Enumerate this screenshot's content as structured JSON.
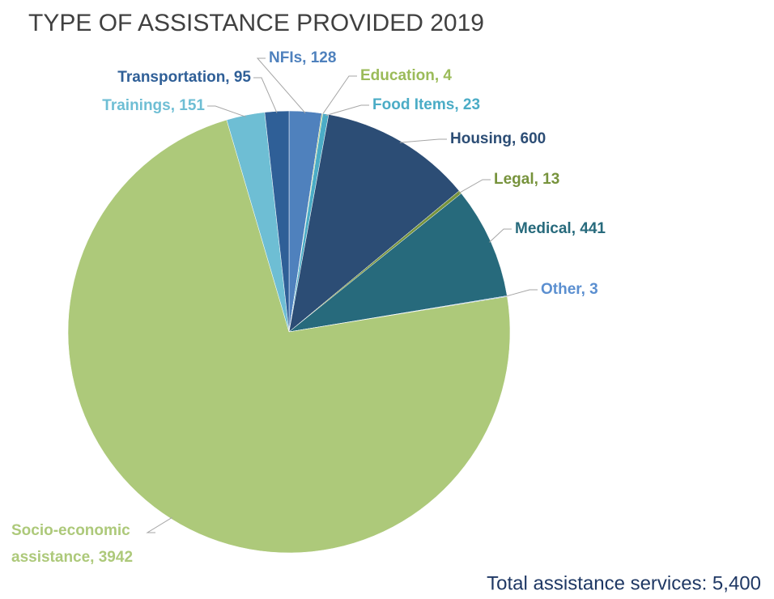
{
  "chart_data": {
    "type": "pie",
    "title": "TYPE OF ASSISTANCE PROVIDED 2019",
    "values": [
      128,
      4,
      23,
      600,
      13,
      441,
      3,
      3942,
      151,
      95
    ],
    "value_labels": [
      "NFIs, 128",
      "Education, 4",
      "Food Items, 23",
      "Housing, 600",
      "Legal, 13",
      "Medical, 441",
      "Other, 3",
      "Socio-economic assistance, 3942",
      "Trainings, 151",
      "Transportation, 95"
    ],
    "colors": [
      "#4f81bd",
      "#9bbb59",
      "#4bacc6",
      "#2c4d75",
      "#77933c",
      "#276a7c",
      "#5b8fd0",
      "#adc97a",
      "#6ebed4",
      "#2f5f97"
    ],
    "annotation": "Total assistance services: 5,400"
  }
}
